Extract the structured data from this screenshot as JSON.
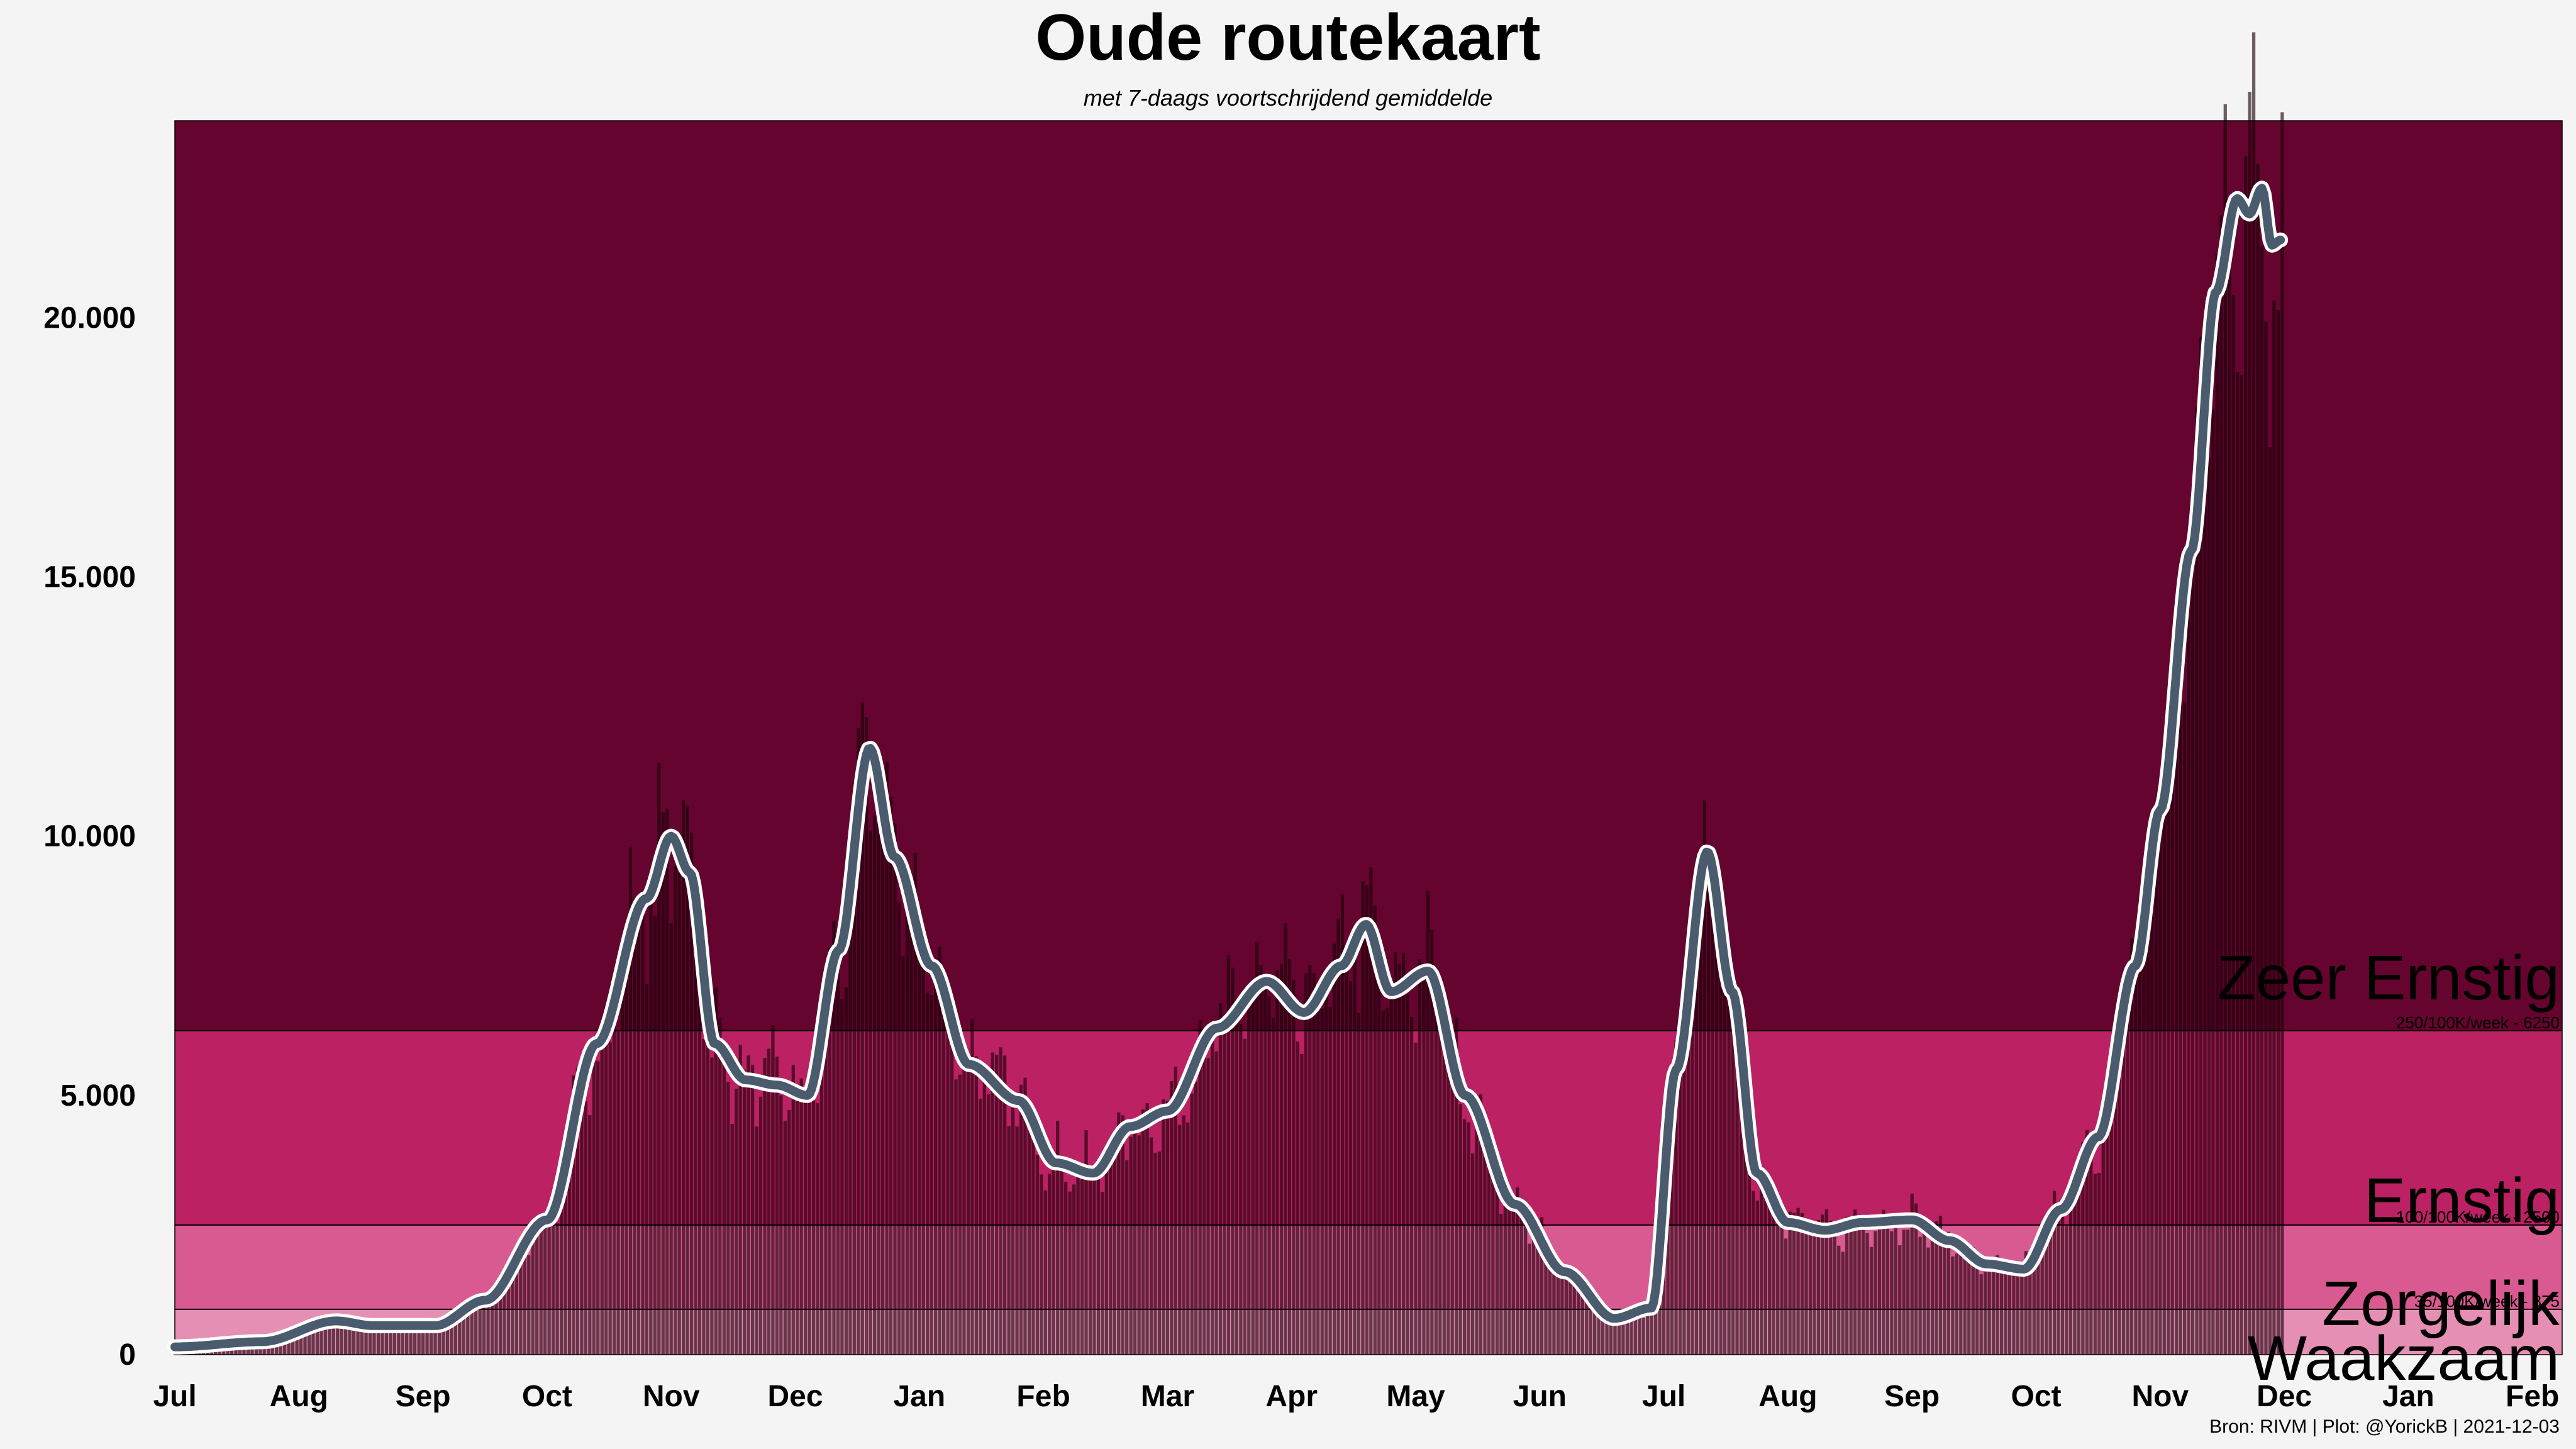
{
  "chart_data": {
    "type": "bar",
    "title": "Oude routekaart",
    "subtitle": "met 7-daags voortschrijdend gemiddelde",
    "caption": "Bron: RIVM | Plot: @YorickB  |  2021-12-03",
    "x_tick_labels": [
      "Jul",
      "Aug",
      "Sep",
      "Oct",
      "Nov",
      "Dec",
      "Jan",
      "Feb",
      "Mar",
      "Apr",
      "May",
      "Jun",
      "Jul",
      "Aug",
      "Sep",
      "Oct",
      "Nov",
      "Dec",
      "Jan",
      "Feb"
    ],
    "y_ticks": [
      0,
      5000,
      10000,
      15000,
      20000
    ],
    "y_tick_labels": [
      "0",
      "5.000",
      "10.000",
      "15.000",
      "20.000"
    ],
    "ylim": [
      0,
      23800
    ],
    "zones": [
      {
        "name": "Waakzaam",
        "from": 0,
        "to": 875,
        "color": "#e58fb5",
        "sublabel": ""
      },
      {
        "name": "Zorgelijk",
        "from": 875,
        "to": 2500,
        "color": "#d95a91",
        "sublabel": "35/100K/week - 875"
      },
      {
        "name": "Ernstig",
        "from": 2500,
        "to": 6250,
        "color": "#bc2163",
        "sublabel": "100/100K/week - 2500"
      },
      {
        "name": "Zeer Ernstig",
        "from": 6250,
        "to": 23800,
        "color": "#65042e",
        "sublabel": "250/100K/week - 6250"
      }
    ],
    "moving_average_keypoints": [
      {
        "t": 0.0,
        "v": 150
      },
      {
        "t": 0.7,
        "v": 250
      },
      {
        "t": 1.3,
        "v": 650
      },
      {
        "t": 1.6,
        "v": 560
      },
      {
        "t": 2.1,
        "v": 560
      },
      {
        "t": 2.5,
        "v": 1050
      },
      {
        "t": 3.0,
        "v": 2600
      },
      {
        "t": 3.4,
        "v": 6000
      },
      {
        "t": 3.8,
        "v": 8800
      },
      {
        "t": 4.0,
        "v": 10000
      },
      {
        "t": 4.15,
        "v": 9300
      },
      {
        "t": 4.35,
        "v": 6000
      },
      {
        "t": 4.6,
        "v": 5300
      },
      {
        "t": 4.85,
        "v": 5200
      },
      {
        "t": 5.1,
        "v": 5000
      },
      {
        "t": 5.35,
        "v": 7800
      },
      {
        "t": 5.6,
        "v": 11700
      },
      {
        "t": 5.8,
        "v": 9600
      },
      {
        "t": 6.1,
        "v": 7500
      },
      {
        "t": 6.4,
        "v": 5600
      },
      {
        "t": 6.8,
        "v": 4900
      },
      {
        "t": 7.1,
        "v": 3700
      },
      {
        "t": 7.4,
        "v": 3500
      },
      {
        "t": 7.7,
        "v": 4400
      },
      {
        "t": 8.0,
        "v": 4700
      },
      {
        "t": 8.4,
        "v": 6300
      },
      {
        "t": 8.8,
        "v": 7200
      },
      {
        "t": 9.1,
        "v": 6600
      },
      {
        "t": 9.4,
        "v": 7500
      },
      {
        "t": 9.6,
        "v": 8300
      },
      {
        "t": 9.8,
        "v": 7000
      },
      {
        "t": 10.1,
        "v": 7400
      },
      {
        "t": 10.4,
        "v": 5000
      },
      {
        "t": 10.8,
        "v": 2900
      },
      {
        "t": 11.2,
        "v": 1600
      },
      {
        "t": 11.6,
        "v": 700
      },
      {
        "t": 11.9,
        "v": 900
      },
      {
        "t": 12.1,
        "v": 5500
      },
      {
        "t": 12.35,
        "v": 9700
      },
      {
        "t": 12.55,
        "v": 7000
      },
      {
        "t": 12.75,
        "v": 3500
      },
      {
        "t": 13.0,
        "v": 2550
      },
      {
        "t": 13.3,
        "v": 2400
      },
      {
        "t": 13.6,
        "v": 2550
      },
      {
        "t": 14.0,
        "v": 2600
      },
      {
        "t": 14.3,
        "v": 2200
      },
      {
        "t": 14.6,
        "v": 1750
      },
      {
        "t": 14.9,
        "v": 1650
      },
      {
        "t": 15.2,
        "v": 2800
      },
      {
        "t": 15.5,
        "v": 4200
      },
      {
        "t": 15.8,
        "v": 7500
      },
      {
        "t": 16.0,
        "v": 10500
      },
      {
        "t": 16.25,
        "v": 15500
      },
      {
        "t": 16.45,
        "v": 20500
      },
      {
        "t": 16.62,
        "v": 22300
      },
      {
        "t": 16.72,
        "v": 22000
      },
      {
        "t": 16.82,
        "v": 22500
      },
      {
        "t": 16.9,
        "v": 21400
      },
      {
        "t": 16.97,
        "v": 21500
      }
    ]
  }
}
